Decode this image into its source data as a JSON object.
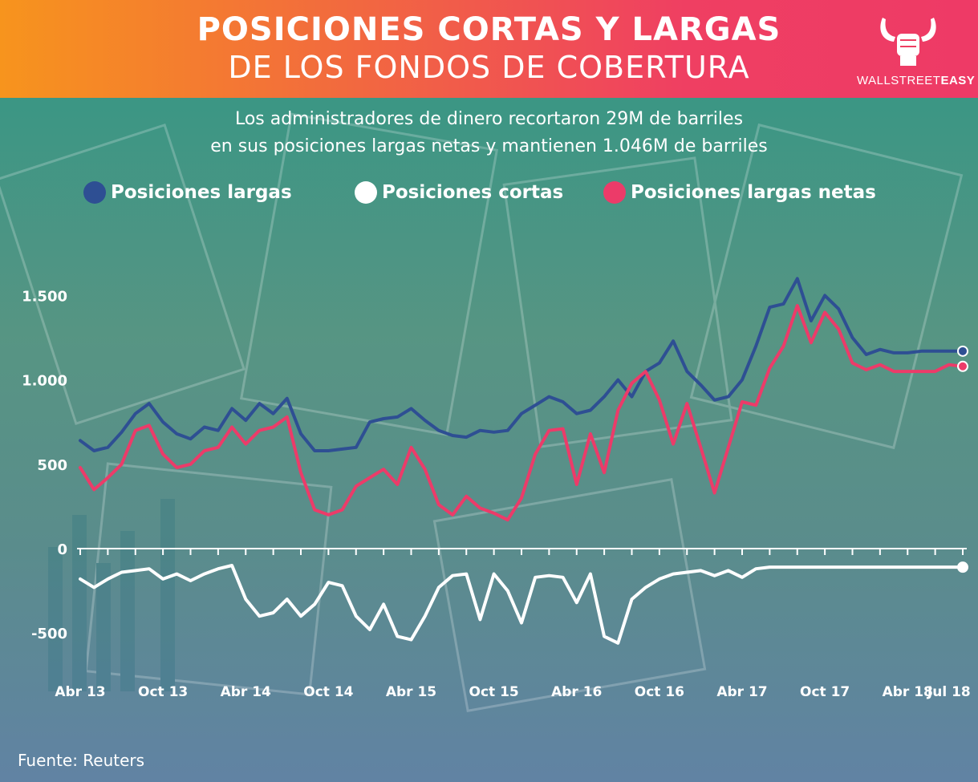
{
  "header": {
    "title_line1": "POSICIONES CORTAS Y LARGAS",
    "title_line2": "DE LOS FONDOS DE COBERTURA",
    "logo_text_light": "WALLSTREET",
    "logo_text_bold": "EASY",
    "logo_icon": "bull-fist-icon",
    "brand_color": "#ef3f62"
  },
  "subtitle": {
    "line1": "Los administradores de dinero recortaron 29M de barriles",
    "line2": "en sus posiciones largas netas y mantienen 1.046M de barriles"
  },
  "legend": [
    {
      "label": "Posiciones largas",
      "color": "#2e4f93"
    },
    {
      "label": "Posiciones cortas",
      "color": "#ffffff"
    },
    {
      "label": "Posiciones largas netas",
      "color": "#ec3b69"
    }
  ],
  "source": "Fuente: Reuters",
  "chart_data": {
    "type": "line",
    "title": "",
    "xlabel": "",
    "ylabel": "",
    "ylim": [
      -700,
      1700
    ],
    "y_ticks": [
      {
        "value": 1500,
        "label": "1.500"
      },
      {
        "value": 1000,
        "label": "1.000"
      },
      {
        "value": 500,
        "label": "500"
      },
      {
        "value": 0,
        "label": "0"
      },
      {
        "value": -500,
        "label": "-500"
      }
    ],
    "x_ticks": [
      {
        "value": "2013-04",
        "label": "Abr 13"
      },
      {
        "value": "2013-10",
        "label": "Oct 13"
      },
      {
        "value": "2014-04",
        "label": "Abr 14"
      },
      {
        "value": "2014-10",
        "label": "Oct 14"
      },
      {
        "value": "2015-04",
        "label": "Abr 15"
      },
      {
        "value": "2015-10",
        "label": "Oct 15"
      },
      {
        "value": "2016-04",
        "label": "Abr 16"
      },
      {
        "value": "2016-10",
        "label": "Oct 16"
      },
      {
        "value": "2017-04",
        "label": "Abr 17"
      },
      {
        "value": "2017-10",
        "label": "Oct 17"
      },
      {
        "value": "2018-04",
        "label": "Abr 18"
      },
      {
        "value": "2018-07",
        "label": "Jul 18"
      }
    ],
    "x": [
      "2013-04",
      "2013-05",
      "2013-06",
      "2013-07",
      "2013-08",
      "2013-09",
      "2013-10",
      "2013-11",
      "2013-12",
      "2014-01",
      "2014-02",
      "2014-03",
      "2014-04",
      "2014-05",
      "2014-06",
      "2014-07",
      "2014-08",
      "2014-09",
      "2014-10",
      "2014-11",
      "2014-12",
      "2015-01",
      "2015-02",
      "2015-03",
      "2015-04",
      "2015-05",
      "2015-06",
      "2015-07",
      "2015-08",
      "2015-09",
      "2015-10",
      "2015-11",
      "2015-12",
      "2016-01",
      "2016-02",
      "2016-03",
      "2016-04",
      "2016-05",
      "2016-06",
      "2016-07",
      "2016-08",
      "2016-09",
      "2016-10",
      "2016-11",
      "2016-12",
      "2017-01",
      "2017-02",
      "2017-03",
      "2017-04",
      "2017-05",
      "2017-06",
      "2017-07",
      "2017-08",
      "2017-09",
      "2017-10",
      "2017-11",
      "2017-12",
      "2018-01",
      "2018-02",
      "2018-03",
      "2018-04",
      "2018-05",
      "2018-06",
      "2018-07",
      "2018-08"
    ],
    "series": [
      {
        "name": "Posiciones largas",
        "color": "#2e4f93",
        "values": [
          640,
          580,
          600,
          690,
          800,
          860,
          750,
          680,
          650,
          720,
          700,
          830,
          760,
          860,
          800,
          890,
          680,
          580,
          580,
          590,
          600,
          750,
          770,
          780,
          830,
          760,
          700,
          670,
          660,
          700,
          690,
          700,
          800,
          850,
          900,
          870,
          800,
          820,
          900,
          1000,
          900,
          1050,
          1100,
          1230,
          1050,
          970,
          880,
          900,
          1000,
          1200,
          1430,
          1450,
          1600,
          1350,
          1500,
          1420,
          1250,
          1150,
          1180,
          1160,
          1160,
          1170,
          1170,
          1170,
          1170
        ]
      },
      {
        "name": "Posiciones cortas",
        "color": "#ffffff",
        "values": [
          -180,
          -230,
          -180,
          -140,
          -130,
          -120,
          -180,
          -150,
          -190,
          -150,
          -120,
          -100,
          -300,
          -400,
          -380,
          -300,
          -400,
          -330,
          -200,
          -220,
          -400,
          -480,
          -330,
          -520,
          -540,
          -400,
          -230,
          -160,
          -150,
          -420,
          -150,
          -250,
          -440,
          -170,
          -160,
          -170,
          -320,
          -150,
          -520,
          -560,
          -300,
          -230,
          -180,
          -150,
          -140,
          -130,
          -160,
          -130,
          -170,
          -120,
          -110,
          -110,
          -110,
          -110,
          -110,
          -110,
          -110,
          -110,
          -110,
          -110,
          -110,
          -110,
          -110,
          -110,
          -110
        ]
      },
      {
        "name": "Posiciones largas netas",
        "color": "#ec3b69",
        "values": [
          480,
          350,
          420,
          500,
          700,
          730,
          560,
          480,
          500,
          580,
          600,
          720,
          620,
          700,
          720,
          780,
          450,
          230,
          200,
          230,
          370,
          420,
          470,
          380,
          600,
          470,
          260,
          200,
          310,
          240,
          210,
          170,
          300,
          560,
          700,
          710,
          380,
          680,
          450,
          820,
          980,
          1050,
          880,
          620,
          860,
          600,
          330,
          600,
          870,
          850,
          1070,
          1200,
          1440,
          1220,
          1400,
          1300,
          1100,
          1060,
          1090,
          1050,
          1050,
          1050,
          1050,
          1090,
          1080
        ]
      }
    ],
    "grid": false,
    "legend_position": "top"
  }
}
